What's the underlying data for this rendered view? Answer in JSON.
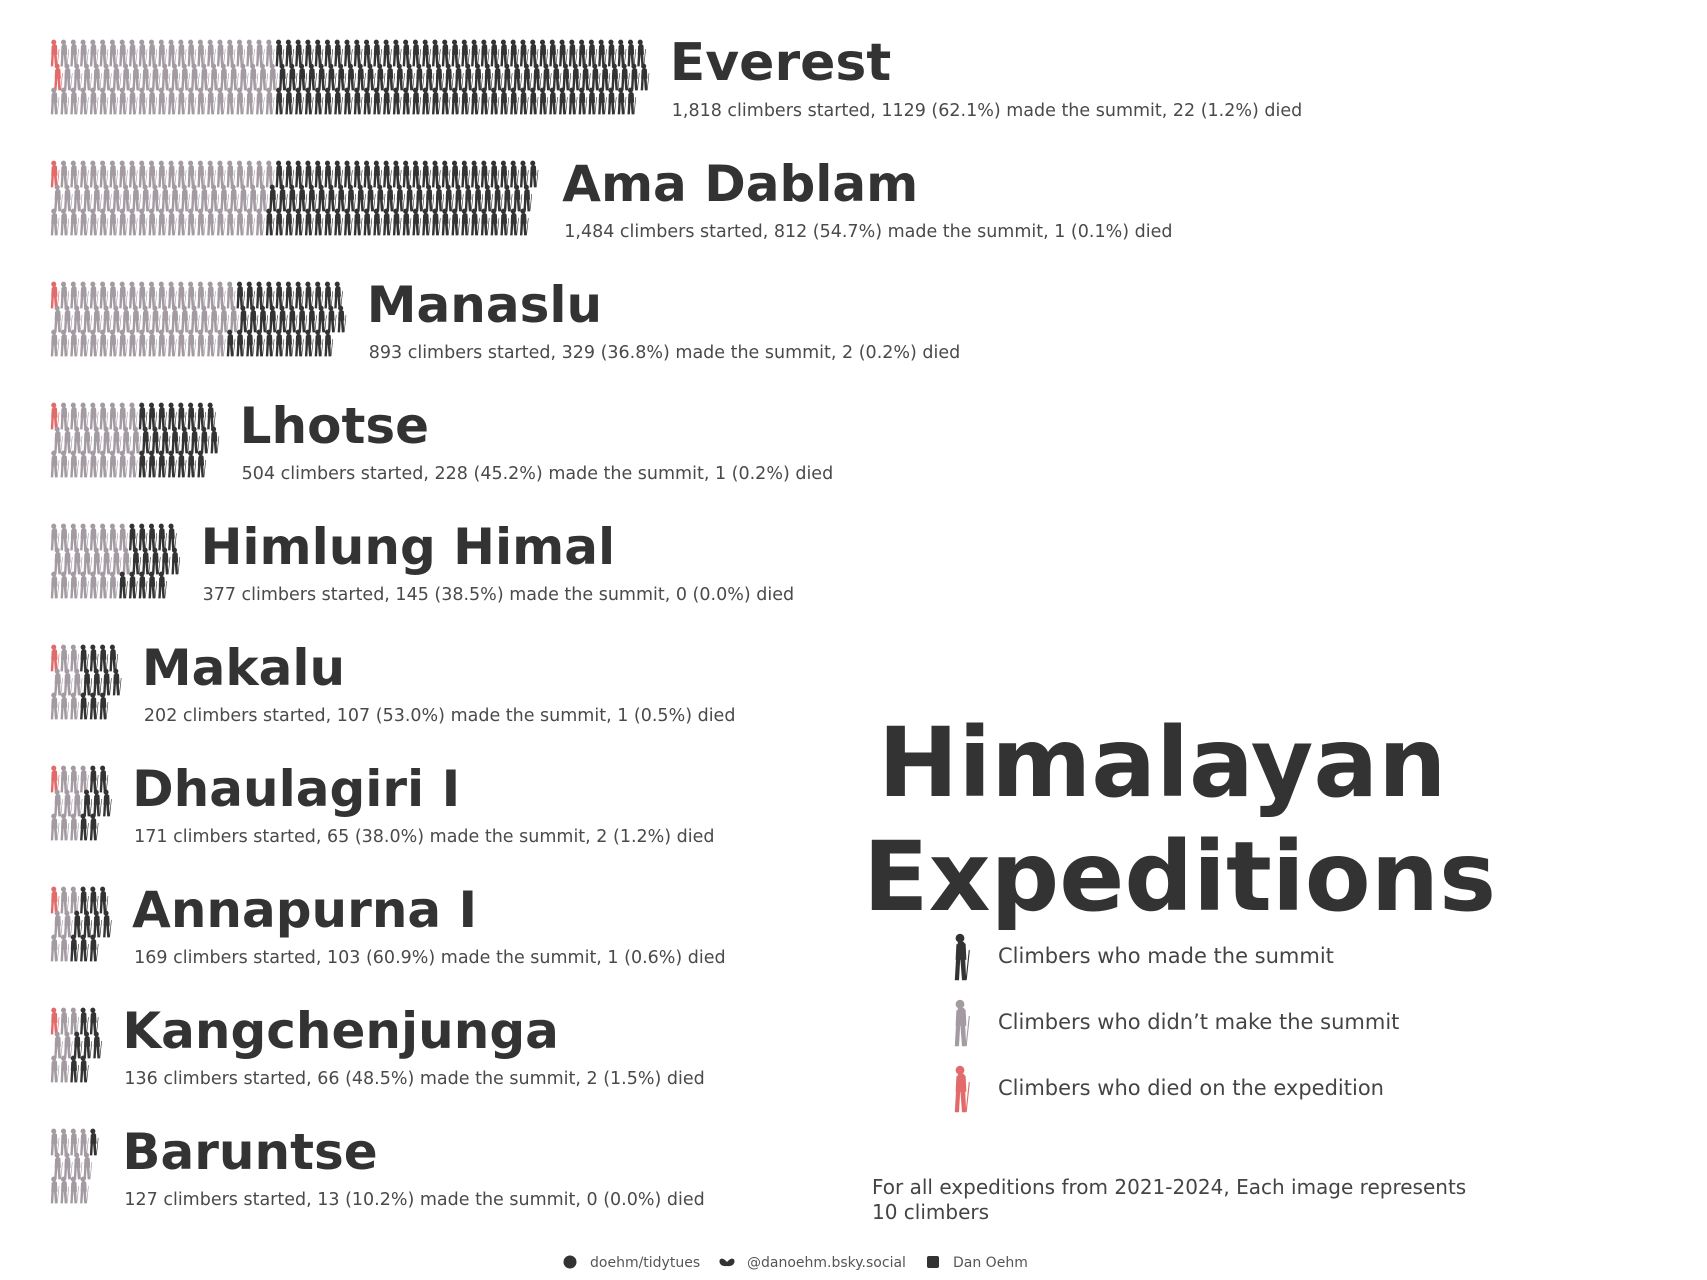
{
  "colors": {
    "summit": "#333333",
    "no_summit": "#a39aa2",
    "died": "#e26a6a",
    "text": "#333333",
    "background": "#ffffff"
  },
  "chart_data": {
    "type": "bar",
    "title": "Himalayan Expeditions",
    "title_lines": [
      "Himalayan",
      "Expeditions"
    ],
    "note_lines": [
      "For all expeditions from 2021-2024, Each image represents",
      "10 climbers"
    ],
    "icon_unit": 10,
    "stacking": "stacked-horizontal",
    "categories": [
      "Everest",
      "Ama Dablam",
      "Manaslu",
      "Lhotse",
      "Himlung Himal",
      "Makalu",
      "Dhaulagiri I",
      "Annapurna I",
      "Kangchenjunga",
      "Baruntse"
    ],
    "series": [
      {
        "name": "Climbers who made the summit",
        "color": "#333333",
        "values": [
          1129,
          812,
          329,
          228,
          145,
          107,
          65,
          103,
          66,
          13
        ]
      },
      {
        "name": "Climbers who didn’t make the summit",
        "color": "#a39aa2",
        "values": [
          689,
          672,
          564,
          276,
          232,
          95,
          106,
          66,
          70,
          114
        ]
      },
      {
        "name": "Climbers who died on the expedition",
        "color": "#e26a6a",
        "values": [
          22,
          1,
          2,
          1,
          0,
          1,
          2,
          1,
          2,
          0
        ]
      }
    ],
    "peaks": [
      {
        "name": "Everest",
        "stats": "1,818 climbers started, 1129 (62.1%) made the summit, 22 (1.2%) died",
        "started": 1818,
        "summit": 1129,
        "died": 22
      },
      {
        "name": "Ama Dablam",
        "stats": "1,484 climbers started, 812 (54.7%) made the summit, 1 (0.1%) died",
        "started": 1484,
        "summit": 812,
        "died": 1
      },
      {
        "name": "Manaslu",
        "stats": "893 climbers started, 329 (36.8%) made the summit, 2 (0.2%) died",
        "started": 893,
        "summit": 329,
        "died": 2
      },
      {
        "name": "Lhotse",
        "stats": "504 climbers started, 228 (45.2%) made the summit, 1 (0.2%) died",
        "started": 504,
        "summit": 228,
        "died": 1
      },
      {
        "name": "Himlung Himal",
        "stats": "377 climbers started, 145 (38.5%) made the summit, 0 (0.0%) died",
        "started": 377,
        "summit": 145,
        "died": 0
      },
      {
        "name": "Makalu",
        "stats": "202 climbers started, 107 (53.0%) made the summit, 1 (0.5%) died",
        "started": 202,
        "summit": 107,
        "died": 1
      },
      {
        "name": "Dhaulagiri I",
        "stats": "171 climbers started, 65 (38.0%) made the summit, 2 (1.2%) died",
        "started": 171,
        "summit": 65,
        "died": 2
      },
      {
        "name": "Annapurna I",
        "stats": "169 climbers started, 103 (60.9%) made the summit, 1 (0.6%) died",
        "started": 169,
        "summit": 103,
        "died": 1
      },
      {
        "name": "Kangchenjunga",
        "stats": "136 climbers started, 66 (48.5%) made the summit, 2 (1.5%) died",
        "started": 136,
        "summit": 66,
        "died": 2
      },
      {
        "name": "Baruntse",
        "stats": "127 climbers started, 13 (10.2%) made the summit, 0 (0.0%) died",
        "started": 127,
        "summit": 13,
        "died": 0
      }
    ],
    "legend": [
      {
        "label": "Climbers who made the summit",
        "color": "#333333",
        "icon": "climber-icon"
      },
      {
        "label": "Climbers who didn’t make the summit",
        "color": "#a39aa2",
        "icon": "climber-icon"
      },
      {
        "label": "Climbers who died on the expedition",
        "color": "#e26a6a",
        "icon": "climber-icon"
      }
    ],
    "legend_position": "right",
    "grid": false
  },
  "footer": [
    {
      "icon": "github-icon",
      "text": "doehm/tidytues"
    },
    {
      "icon": "bluesky-butterfly-icon",
      "text": "@danoehm.bsky.social"
    },
    {
      "icon": "linkedin-icon",
      "text": "Dan Oehm"
    }
  ]
}
